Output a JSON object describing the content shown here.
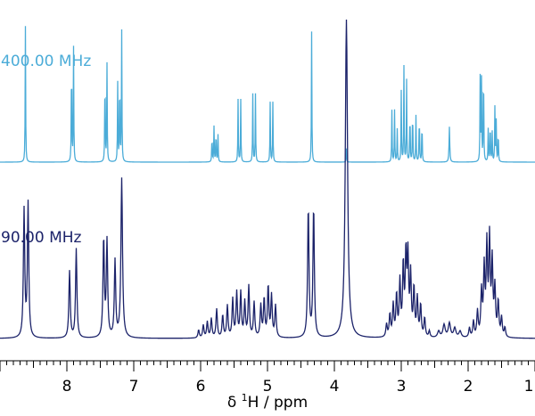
{
  "chart_data": {
    "type": "line",
    "title": "",
    "xlabel": "δ 1H / ppm",
    "xlabel_parts": {
      "prefix": "δ ",
      "sup": "1",
      "suffix": "H / ppm"
    },
    "ylabel": "",
    "xlim": [
      9.0,
      1.0
    ],
    "x_reversed": true,
    "x_ticks": [
      8,
      7,
      6,
      5,
      4,
      3,
      2,
      1
    ],
    "x_minor_step": 0.1,
    "grid": false,
    "legend": "none",
    "series": [
      {
        "name": "400.00 MHz",
        "color": "#4bacd8",
        "peak_height_scale": 0.92,
        "peaks": [
          [
            8.62,
            1.0,
            0.004
          ],
          [
            7.93,
            0.88,
            0.004
          ],
          [
            7.9,
            0.84,
            0.004
          ],
          [
            7.43,
            0.76,
            0.004
          ],
          [
            7.4,
            0.72,
            0.004
          ],
          [
            7.24,
            0.58,
            0.004
          ],
          [
            7.21,
            0.72,
            0.004
          ],
          [
            7.18,
            0.96,
            0.004
          ],
          [
            5.83,
            0.22,
            0.004
          ],
          [
            5.8,
            0.26,
            0.004
          ],
          [
            5.77,
            0.26,
            0.004
          ],
          [
            5.74,
            0.2,
            0.004
          ],
          [
            5.44,
            0.46,
            0.004
          ],
          [
            5.4,
            0.46,
            0.004
          ],
          [
            5.22,
            0.5,
            0.004
          ],
          [
            5.18,
            0.5,
            0.004
          ],
          [
            4.96,
            0.44,
            0.004
          ],
          [
            4.92,
            0.44,
            0.004
          ],
          [
            4.34,
            0.96,
            0.004
          ],
          [
            3.82,
            0.1,
            0.004
          ],
          [
            3.14,
            0.38,
            0.004
          ],
          [
            3.1,
            0.38,
            0.004
          ],
          [
            3.06,
            0.24,
            0.004
          ],
          [
            3.0,
            0.52,
            0.004
          ],
          [
            2.96,
            0.7,
            0.004
          ],
          [
            2.92,
            0.6,
            0.004
          ],
          [
            2.87,
            0.42,
            0.004
          ],
          [
            2.83,
            0.44,
            0.004
          ],
          [
            2.78,
            0.34,
            0.004
          ],
          [
            2.73,
            0.4,
            0.004
          ],
          [
            2.69,
            0.34,
            0.004
          ],
          [
            2.28,
            0.26,
            0.006
          ],
          [
            1.82,
            0.62,
            0.004
          ],
          [
            1.8,
            0.6,
            0.004
          ],
          [
            1.77,
            0.82,
            0.004
          ],
          [
            1.7,
            0.24,
            0.004
          ],
          [
            1.67,
            0.34,
            0.004
          ],
          [
            1.64,
            0.22,
            0.004
          ],
          [
            1.6,
            0.4,
            0.004
          ],
          [
            1.58,
            0.3,
            0.004
          ],
          [
            1.55,
            0.26,
            0.004
          ]
        ]
      },
      {
        "name": "90.00 MHz",
        "color": "#1c236a",
        "peak_height_scale": 0.6,
        "peaks": [
          [
            8.64,
            0.8,
            0.012
          ],
          [
            8.58,
            0.84,
            0.012
          ],
          [
            7.96,
            0.42,
            0.012
          ],
          [
            7.86,
            0.56,
            0.012
          ],
          [
            7.45,
            0.62,
            0.012
          ],
          [
            7.4,
            0.6,
            0.012
          ],
          [
            7.28,
            0.48,
            0.012
          ],
          [
            7.18,
            1.0,
            0.014
          ],
          [
            6.03,
            0.05,
            0.012
          ],
          [
            5.96,
            0.08,
            0.012
          ],
          [
            5.9,
            0.1,
            0.012
          ],
          [
            5.84,
            0.12,
            0.012
          ],
          [
            5.76,
            0.18,
            0.012
          ],
          [
            5.67,
            0.14,
            0.012
          ],
          [
            5.6,
            0.2,
            0.012
          ],
          [
            5.52,
            0.24,
            0.012
          ],
          [
            5.46,
            0.28,
            0.012
          ],
          [
            5.4,
            0.28,
            0.012
          ],
          [
            5.34,
            0.22,
            0.012
          ],
          [
            5.28,
            0.32,
            0.012
          ],
          [
            5.2,
            0.22,
            0.012
          ],
          [
            5.1,
            0.2,
            0.012
          ],
          [
            5.05,
            0.24,
            0.012
          ],
          [
            4.99,
            0.32,
            0.012
          ],
          [
            4.94,
            0.26,
            0.012
          ],
          [
            4.88,
            0.2,
            0.012
          ],
          [
            4.39,
            0.82,
            0.012
          ],
          [
            4.31,
            0.82,
            0.012
          ],
          [
            3.82,
            2.0,
            0.02
          ],
          [
            3.22,
            0.08,
            0.012
          ],
          [
            3.17,
            0.14,
            0.012
          ],
          [
            3.12,
            0.2,
            0.012
          ],
          [
            3.07,
            0.26,
            0.012
          ],
          [
            3.02,
            0.34,
            0.012
          ],
          [
            2.97,
            0.44,
            0.012
          ],
          [
            2.93,
            0.5,
            0.012
          ],
          [
            2.9,
            0.48,
            0.012
          ],
          [
            2.86,
            0.38,
            0.012
          ],
          [
            2.81,
            0.3,
            0.012
          ],
          [
            2.76,
            0.24,
            0.012
          ],
          [
            2.71,
            0.2,
            0.012
          ],
          [
            2.65,
            0.12,
            0.012
          ],
          [
            2.58,
            0.04,
            0.012
          ],
          [
            2.44,
            0.04,
            0.02
          ],
          [
            2.36,
            0.08,
            0.02
          ],
          [
            2.28,
            0.09,
            0.02
          ],
          [
            2.2,
            0.06,
            0.02
          ],
          [
            2.12,
            0.04,
            0.02
          ],
          [
            1.98,
            0.06,
            0.012
          ],
          [
            1.92,
            0.1,
            0.012
          ],
          [
            1.86,
            0.16,
            0.012
          ],
          [
            1.8,
            0.28,
            0.012
          ],
          [
            1.76,
            0.42,
            0.012
          ],
          [
            1.72,
            0.56,
            0.012
          ],
          [
            1.68,
            0.6,
            0.012
          ],
          [
            1.64,
            0.46,
            0.012
          ],
          [
            1.6,
            0.3,
            0.012
          ],
          [
            1.55,
            0.22,
            0.012
          ],
          [
            1.5,
            0.12,
            0.012
          ],
          [
            1.45,
            0.06,
            0.012
          ]
        ]
      }
    ]
  }
}
